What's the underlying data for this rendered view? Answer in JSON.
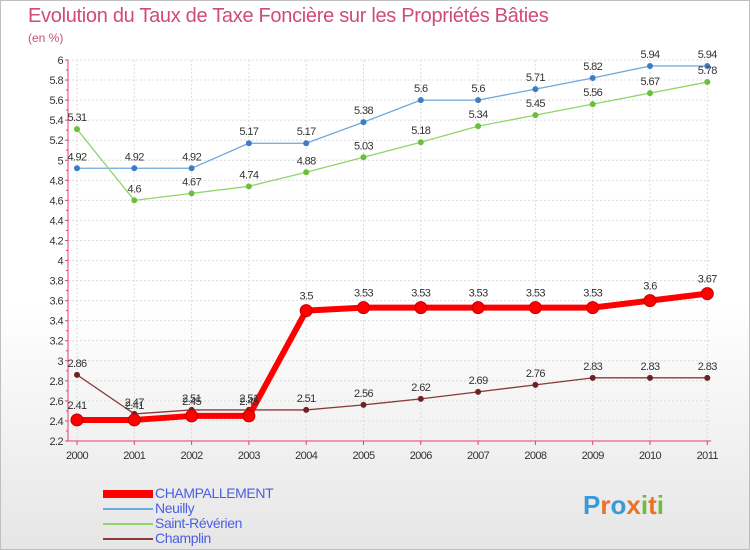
{
  "header": {
    "title": "Evolution du Taux de Taxe Foncière sur les Propriétés Bâties",
    "subtitle": "(en %)"
  },
  "logo": {
    "text": "Proxiti",
    "letter_colors": [
      "#3a9ad9",
      "#e5742a",
      "#3a9ad9",
      "#e5742a",
      "#6cbf3a",
      "#e5742a",
      "#6cbf3a"
    ]
  },
  "chart_data": {
    "type": "line",
    "x": [
      "2000",
      "2001",
      "2002",
      "2003",
      "2004",
      "2005",
      "2006",
      "2007",
      "2008",
      "2009",
      "2010",
      "2011"
    ],
    "ylim": [
      2.2,
      6
    ],
    "yticks": [
      "2.2",
      "2.4",
      "2.6",
      "2.8",
      "3",
      "3.2",
      "3.4",
      "3.6",
      "3.8",
      "4",
      "4.2",
      "4.4",
      "4.6",
      "4.8",
      "5",
      "5.2",
      "5.4",
      "5.6",
      "5.8",
      "6"
    ],
    "grid": true,
    "legend_position": "bottom-left",
    "series": [
      {
        "name": "CHAMPALLEMENT",
        "color": "#ff0000",
        "marker_color": "#ff0000",
        "width": 6,
        "values": [
          2.41,
          2.41,
          2.45,
          2.45,
          3.5,
          3.53,
          3.53,
          3.53,
          3.53,
          3.53,
          3.6,
          3.67
        ],
        "labels": [
          "2.41",
          "2.41",
          "2.45",
          "2.45",
          "3.5",
          "3.53",
          "3.53",
          "3.53",
          "3.53",
          "3.53",
          "3.6",
          "3.67"
        ]
      },
      {
        "name": "Neuilly",
        "color": "#6fa8dc",
        "marker_color": "#3d7ec2",
        "width": 1.3,
        "values": [
          4.92,
          4.92,
          4.92,
          5.17,
          5.17,
          5.38,
          5.6,
          5.6,
          5.71,
          5.82,
          5.94,
          5.94
        ],
        "labels": [
          "4.92",
          "4.92",
          "4.92",
          "5.17",
          "5.17",
          "5.38",
          "5.6",
          "5.6",
          "5.71",
          "5.82",
          "5.94",
          "5.94"
        ]
      },
      {
        "name": "Saint-Révérien",
        "color": "#8fd66a",
        "marker_color": "#6cbf3a",
        "width": 1.3,
        "values": [
          5.31,
          4.6,
          4.67,
          4.74,
          4.88,
          5.03,
          5.18,
          5.34,
          5.45,
          5.56,
          5.67,
          5.78
        ],
        "labels": [
          "5.31",
          "4.6",
          "4.67",
          "4.74",
          "4.88",
          "5.03",
          "5.18",
          "5.34",
          "5.45",
          "5.56",
          "5.67",
          "5.78"
        ]
      },
      {
        "name": "Champlin",
        "color": "#8b3a3a",
        "marker_color": "#6e2323",
        "width": 1.3,
        "values": [
          2.86,
          2.47,
          2.51,
          2.51,
          2.51,
          2.56,
          2.62,
          2.69,
          2.76,
          2.83,
          2.83,
          2.83
        ],
        "labels": [
          "2.86",
          "2.47",
          "2.51",
          "2.51",
          "2.51",
          "2.56",
          "2.62",
          "2.69",
          "2.76",
          "2.83",
          "2.83",
          "2.83"
        ]
      }
    ]
  }
}
